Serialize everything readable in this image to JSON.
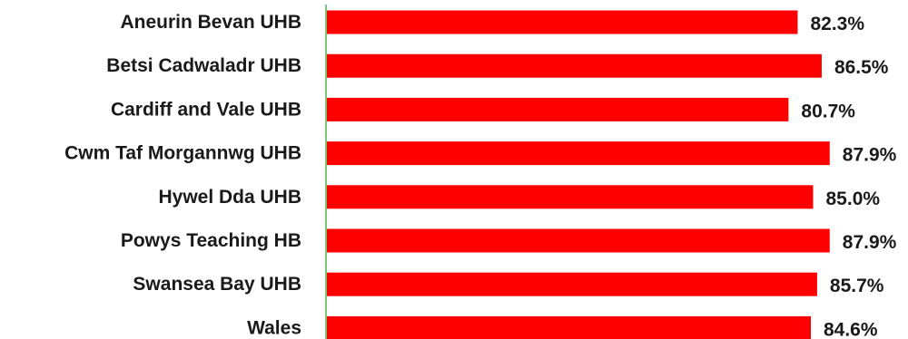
{
  "chart_data": {
    "type": "bar",
    "orientation": "horizontal",
    "categories": [
      "Aneurin Bevan UHB",
      "Betsi Cadwaladr UHB",
      "Cardiff and Vale UHB",
      "Cwm Taf Morgannwg UHB",
      "Hywel Dda UHB",
      "Powys Teaching HB",
      "Swansea Bay UHB",
      "Wales"
    ],
    "values": [
      82.3,
      86.5,
      80.7,
      87.9,
      85.0,
      87.9,
      85.7,
      84.6
    ],
    "value_labels": [
      "82.3%",
      "86.5%",
      "80.7%",
      "87.9%",
      "85.0%",
      "87.9%",
      "85.7%",
      "84.6%"
    ],
    "value_unit": "%",
    "xlim": [
      0,
      100
    ],
    "grid": false,
    "legend": "none",
    "bar_color": "#ff0000",
    "axis_color": "#7cc576"
  }
}
